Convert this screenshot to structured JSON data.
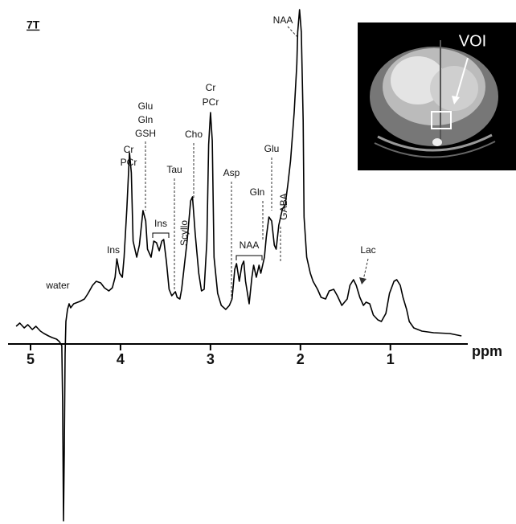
{
  "chart_data": {
    "type": "line",
    "x": [
      5.16,
      5.12,
      5.07,
      5.03,
      4.98,
      4.94,
      4.89,
      4.85,
      4.8,
      4.76,
      4.71,
      4.68,
      4.652,
      4.643,
      4.634,
      4.625,
      4.616,
      4.607,
      4.589,
      4.571,
      4.554,
      4.52,
      4.45,
      4.4,
      4.36,
      4.31,
      4.27,
      4.22,
      4.18,
      4.13,
      4.09,
      4.06,
      4.04,
      4.01,
      3.98,
      3.96,
      3.93,
      3.9,
      3.88,
      3.86,
      3.82,
      3.79,
      3.75,
      3.72,
      3.7,
      3.66,
      3.63,
      3.6,
      3.57,
      3.54,
      3.52,
      3.49,
      3.46,
      3.43,
      3.39,
      3.37,
      3.34,
      3.32,
      3.29,
      3.26,
      3.22,
      3.2,
      3.17,
      3.13,
      3.1,
      3.07,
      3.04,
      3.02,
      3.0,
      2.98,
      2.96,
      2.92,
      2.88,
      2.83,
      2.79,
      2.76,
      2.73,
      2.71,
      2.68,
      2.65,
      2.63,
      2.61,
      2.57,
      2.54,
      2.52,
      2.49,
      2.46,
      2.44,
      2.4,
      2.38,
      2.35,
      2.32,
      2.29,
      2.27,
      2.24,
      2.2,
      2.17,
      2.14,
      2.11,
      2.07,
      2.04,
      2.03,
      2.01,
      1.99,
      1.97,
      1.96,
      1.93,
      1.89,
      1.86,
      1.81,
      1.77,
      1.72,
      1.68,
      1.63,
      1.59,
      1.54,
      1.48,
      1.45,
      1.41,
      1.38,
      1.34,
      1.3,
      1.27,
      1.23,
      1.19,
      1.14,
      1.1,
      1.05,
      1.01,
      0.96,
      0.93,
      0.89,
      0.86,
      0.82,
      0.79,
      0.74,
      0.65,
      0.52,
      0.34,
      0.21
    ],
    "values": [
      22,
      26,
      20,
      24,
      18,
      22,
      16,
      13,
      10,
      8,
      6,
      3,
      -2,
      -72,
      -220,
      -132,
      -12,
      28,
      43,
      50,
      45,
      50,
      53,
      56,
      63,
      73,
      78,
      76,
      70,
      66,
      70,
      83,
      106,
      88,
      83,
      108,
      168,
      238,
      213,
      128,
      108,
      123,
      166,
      153,
      118,
      108,
      128,
      126,
      116,
      128,
      130,
      103,
      68,
      60,
      65,
      58,
      56,
      68,
      98,
      128,
      178,
      183,
      138,
      88,
      66,
      68,
      128,
      248,
      288,
      253,
      108,
      63,
      48,
      43,
      48,
      56,
      93,
      100,
      78,
      98,
      103,
      78,
      50,
      83,
      98,
      83,
      98,
      88,
      108,
      133,
      158,
      153,
      123,
      118,
      148,
      168,
      173,
      198,
      228,
      288,
      348,
      388,
      416,
      388,
      278,
      158,
      108,
      88,
      78,
      68,
      58,
      56,
      66,
      68,
      60,
      48,
      56,
      73,
      80,
      73,
      58,
      48,
      52,
      50,
      36,
      30,
      28,
      38,
      63,
      78,
      80,
      73,
      58,
      43,
      28,
      20,
      16,
      14,
      13,
      10
    ],
    "color": "#000000",
    "xlim": [
      5.25,
      0.14
    ],
    "ylim": [
      -224,
      428
    ],
    "xticks": [
      5,
      4,
      3,
      2,
      1
    ],
    "x_label": "ppm",
    "annotations": [
      [
        "7T"
      ],
      [
        "water"
      ],
      [
        "Ins"
      ],
      [
        "Cr",
        "PCr"
      ],
      [
        "Glu",
        "Gln",
        "GSH"
      ],
      [
        "Ins"
      ],
      [
        "Tau"
      ],
      [
        "Scyllo"
      ],
      [
        "Cho"
      ],
      [
        "Cr",
        "PCr"
      ],
      [
        "Asp"
      ],
      [
        "NAA"
      ],
      [
        "Gln"
      ],
      [
        "Glu"
      ],
      [
        "GABA"
      ],
      [
        "NAA"
      ],
      [
        "Lac"
      ],
      [
        "VOI"
      ]
    ]
  }
}
